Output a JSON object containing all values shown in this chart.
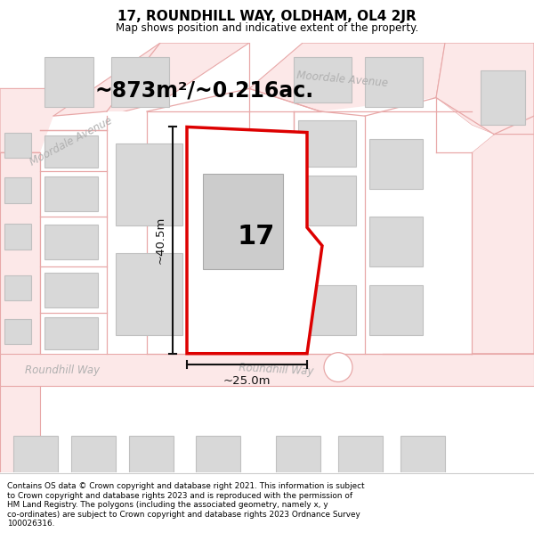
{
  "title": "17, ROUNDHILL WAY, OLDHAM, OL4 2JR",
  "subtitle": "Map shows position and indicative extent of the property.",
  "footer": "Contains OS data © Crown copyright and database right 2021. This information is subject\nto Crown copyright and database rights 2023 and is reproduced with the permission of\nHM Land Registry. The polygons (including the associated geometry, namely x, y\nco-ordinates) are subject to Crown copyright and database rights 2023 Ordnance Survey\n100026316.",
  "area_label": "~873m²/~0.216ac.",
  "house_number": "17",
  "dim_width": "~25.0m",
  "dim_height": "~40.5m",
  "street_roundhill_left": "Roundhill Way",
  "street_roundhill_center": "Roundhill Way",
  "street_moordale_left": "Moordale Avenue",
  "street_moordale_right": "Moordale Avenue",
  "map_bg": "#ffffff",
  "road_line_color": "#e8a8a8",
  "road_fill_color": "#fce8e8",
  "building_fill": "#d8d8d8",
  "building_edge": "#c0c0c0",
  "highlight_fill": "#ffffff",
  "highlight_edge": "#dd0000",
  "highlight_lw": 2.5,
  "inner_building_fill": "#cccccc",
  "inner_building_edge": "#aaaaaa",
  "dim_color": "#111111",
  "street_color": "#b0b0b0",
  "title_fontsize": 11,
  "subtitle_fontsize": 8.5,
  "footer_fontsize": 6.4,
  "area_fontsize": 17,
  "house_fontsize": 22,
  "street_fontsize": 8.5,
  "dim_fontsize": 9.5
}
